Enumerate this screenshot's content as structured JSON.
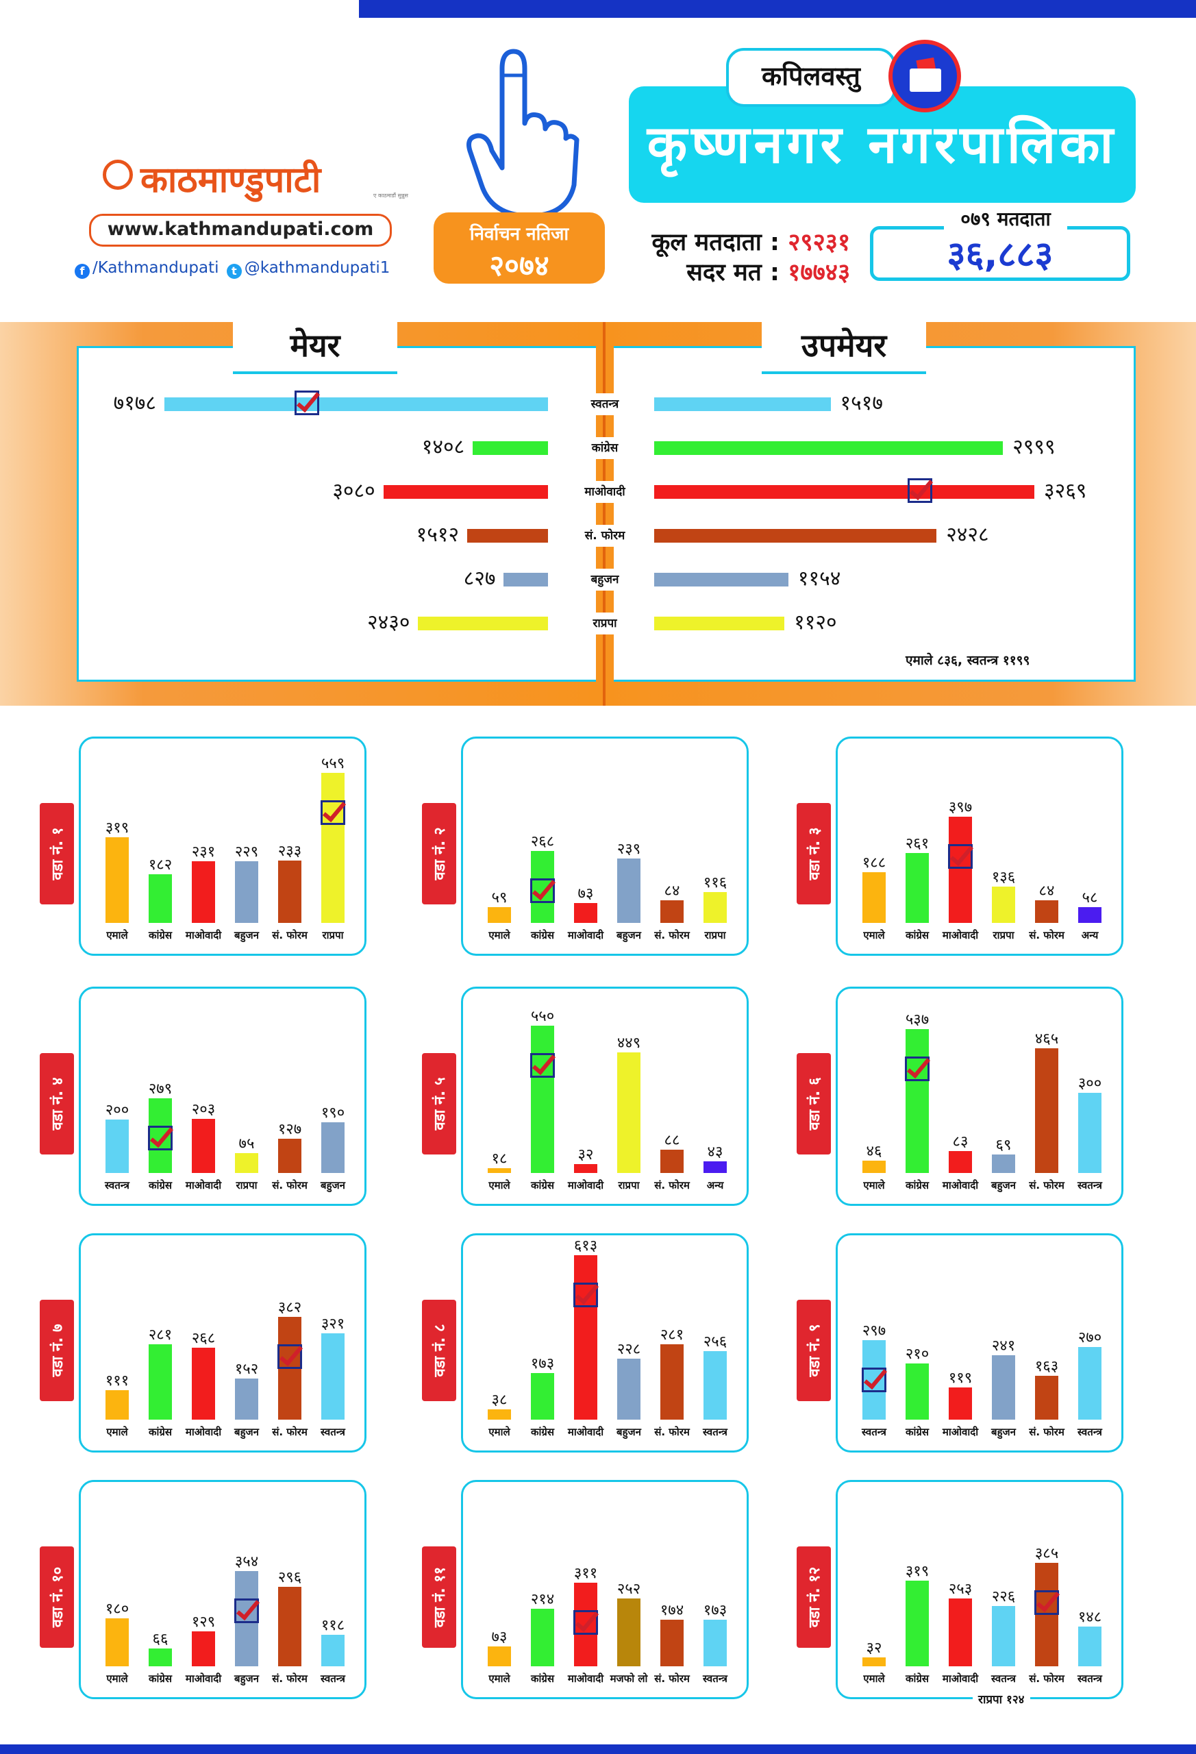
{
  "header": {
    "logo": "काठमाण्डुपाटी",
    "logo_tagline": "ए काठमाडौं सुन्नुस",
    "website": "www.kathmandupati.com",
    "facebook": "/Kathmandupati",
    "twitter": "@kathmandupati1",
    "badge_line1": "निर्वाचन नतिजा",
    "badge_line2": "२०७४",
    "district": "कपिलवस्तु",
    "municipality": "कृष्णनगर नगरपालिका",
    "total_voters_label": "कूल मतदाता :",
    "total_voters": "२९२३१",
    "valid_votes_label": "सदर मत :",
    "valid_votes": "१७७४३",
    "voters_079_label": "०७९ मतदाता",
    "voters_079": "३६,८८३"
  },
  "colors": {
    "cyan": "#16c6e8",
    "orange": "#f7931e",
    "red": "#e0262e",
    "blue": "#1b3bd1"
  },
  "chart_data": [
    {
      "type": "bar",
      "title_left": "मेयर",
      "title_right": "उपमेयर",
      "categories": [
        "स्वतन्त्र",
        "कांग्रेस",
        "माओवादी",
        "सं. फोरम",
        "बहुजन",
        "राप्रपा"
      ],
      "bar_colors": [
        "#5fd3f3",
        "#33ee33",
        "#f21d1d",
        "#c14414",
        "#82a2c8",
        "#eef22a"
      ],
      "series": [
        {
          "name": "मेयर",
          "values": [
            7178,
            1408,
            3080,
            1512,
            827,
            2430
          ],
          "labels": [
            "७१७८",
            "१४०८",
            "३०८०",
            "१५१२",
            "८२७",
            "२४३०"
          ],
          "winner_index": 0
        },
        {
          "name": "उपमेयर",
          "values": [
            1517,
            2999,
            3269,
            2428,
            1154,
            1120
          ],
          "labels": [
            "१५१७",
            "२९९९",
            "३२६९",
            "२४२८",
            "११५४",
            "११२०"
          ],
          "winner_index": 2
        }
      ],
      "footnote": "एमाले ८३६, स्वतन्त्र ११९९"
    },
    {
      "type": "bar",
      "ward": "वडा नं. १",
      "categories": [
        "एमाले",
        "कांग्रेस",
        "माओवादी",
        "बहुजन",
        "सं. फोरम",
        "राप्रपा"
      ],
      "values": [
        319,
        182,
        231,
        229,
        233,
        559
      ],
      "labels": [
        "३१९",
        "१८२",
        "२३१",
        "२२९",
        "२३३",
        "५५९"
      ],
      "colors": [
        "#fcb40f",
        "#33ee33",
        "#f21d1d",
        "#82a2c8",
        "#c14414",
        "#eef22a"
      ],
      "winner_index": 5
    },
    {
      "type": "bar",
      "ward": "वडा नं. २",
      "categories": [
        "एमाले",
        "कांग्रेस",
        "माओवादी",
        "बहुजन",
        "सं. फोरम",
        "राप्रपा"
      ],
      "values": [
        59,
        268,
        73,
        239,
        84,
        116
      ],
      "labels": [
        "५९",
        "२६८",
        "७३",
        "२३९",
        "८४",
        "११६"
      ],
      "colors": [
        "#fcb40f",
        "#33ee33",
        "#f21d1d",
        "#82a2c8",
        "#c14414",
        "#eef22a"
      ],
      "winner_index": 1
    },
    {
      "type": "bar",
      "ward": "वडा नं. ३",
      "categories": [
        "एमाले",
        "कांग्रेस",
        "माओवादी",
        "राप्रपा",
        "सं. फोरम",
        "अन्य"
      ],
      "values": [
        188,
        261,
        397,
        136,
        84,
        58
      ],
      "labels": [
        "१८८",
        "२६१",
        "३९७",
        "१३६",
        "८४",
        "५८"
      ],
      "colors": [
        "#fcb40f",
        "#33ee33",
        "#f21d1d",
        "#eef22a",
        "#c14414",
        "#4b1cf0"
      ],
      "winner_index": 2
    },
    {
      "type": "bar",
      "ward": "वडा नं. ४",
      "categories": [
        "स्वतन्त्र",
        "कांग्रेस",
        "माओवादी",
        "राप्रपा",
        "सं. फोरम",
        "बहुजन"
      ],
      "values": [
        200,
        279,
        203,
        75,
        127,
        190
      ],
      "labels": [
        "२००",
        "२७९",
        "२०३",
        "७५",
        "१२७",
        "१९०"
      ],
      "colors": [
        "#5fd3f3",
        "#33ee33",
        "#f21d1d",
        "#eef22a",
        "#c14414",
        "#82a2c8"
      ],
      "winner_index": 1
    },
    {
      "type": "bar",
      "ward": "वडा नं. ५",
      "categories": [
        "एमाले",
        "कांग्रेस",
        "माओवादी",
        "राप्रपा",
        "सं. फोरम",
        "अन्य"
      ],
      "values": [
        18,
        550,
        32,
        449,
        88,
        43
      ],
      "labels": [
        "१८",
        "५५०",
        "३२",
        "४४९",
        "८८",
        "४३"
      ],
      "colors": [
        "#fcb40f",
        "#33ee33",
        "#f21d1d",
        "#eef22a",
        "#c14414",
        "#4b1cf0"
      ],
      "winner_index": 1
    },
    {
      "type": "bar",
      "ward": "वडा नं. ६",
      "categories": [
        "एमाले",
        "कांग्रेस",
        "माओवादी",
        "बहुजन",
        "सं. फोरम",
        "स्वतन्त्र"
      ],
      "values": [
        46,
        537,
        83,
        69,
        465,
        300
      ],
      "labels": [
        "४६",
        "५३७",
        "८३",
        "६९",
        "४६५",
        "३००"
      ],
      "colors": [
        "#fcb40f",
        "#33ee33",
        "#f21d1d",
        "#82a2c8",
        "#c14414",
        "#5fd3f3"
      ],
      "winner_index": 1
    },
    {
      "type": "bar",
      "ward": "वडा नं. ७",
      "categories": [
        "एमाले",
        "कांग्रेस",
        "माओवादी",
        "बहुजन",
        "सं. फोरम",
        "स्वतन्त्र"
      ],
      "values": [
        111,
        281,
        268,
        152,
        382,
        321
      ],
      "labels": [
        "१११",
        "२८१",
        "२६८",
        "१५२",
        "३८२",
        "३२१"
      ],
      "colors": [
        "#fcb40f",
        "#33ee33",
        "#f21d1d",
        "#82a2c8",
        "#c14414",
        "#5fd3f3"
      ],
      "winner_index": 4
    },
    {
      "type": "bar",
      "ward": "वडा नं. ८",
      "categories": [
        "एमाले",
        "कांग्रेस",
        "माओवादी",
        "बहुजन",
        "सं. फोरम",
        "स्वतन्त्र"
      ],
      "values": [
        38,
        173,
        613,
        228,
        281,
        256
      ],
      "labels": [
        "३८",
        "१७३",
        "६१३",
        "२२८",
        "२८१",
        "२५६"
      ],
      "colors": [
        "#fcb40f",
        "#33ee33",
        "#f21d1d",
        "#82a2c8",
        "#c14414",
        "#5fd3f3"
      ],
      "winner_index": 2
    },
    {
      "type": "bar",
      "ward": "वडा नं. ९",
      "categories": [
        "स्वतन्त्र",
        "कांग्रेस",
        "माओवादी",
        "बहुजन",
        "सं. फोरम",
        "स्वतन्त्र"
      ],
      "values": [
        297,
        210,
        119,
        241,
        163,
        270
      ],
      "labels": [
        "२९७",
        "२१०",
        "११९",
        "२४१",
        "१६३",
        "२७०"
      ],
      "colors": [
        "#5fd3f3",
        "#33ee33",
        "#f21d1d",
        "#82a2c8",
        "#c14414",
        "#5fd3f3"
      ],
      "winner_index": 0
    },
    {
      "type": "bar",
      "ward": "वडा नं. १०",
      "categories": [
        "एमाले",
        "कांग्रेस",
        "माओवादी",
        "बहुजन",
        "सं. फोरम",
        "स्वतन्त्र"
      ],
      "values": [
        180,
        66,
        129,
        354,
        296,
        118
      ],
      "labels": [
        "१८०",
        "६६",
        "१२९",
        "३५४",
        "२९६",
        "११८"
      ],
      "colors": [
        "#fcb40f",
        "#33ee33",
        "#f21d1d",
        "#82a2c8",
        "#c14414",
        "#5fd3f3"
      ],
      "winner_index": 3
    },
    {
      "type": "bar",
      "ward": "वडा नं. ११",
      "categories": [
        "एमाले",
        "कांग्रेस",
        "माओवादी",
        "मजफो लो",
        "सं. फोरम",
        "स्वतन्त्र"
      ],
      "values": [
        73,
        214,
        311,
        252,
        174,
        173
      ],
      "labels": [
        "७३",
        "२१४",
        "३११",
        "२५२",
        "१७४",
        "१७३"
      ],
      "colors": [
        "#fcb40f",
        "#33ee33",
        "#f21d1d",
        "#b8860b",
        "#c14414",
        "#5fd3f3"
      ],
      "winner_index": 2
    },
    {
      "type": "bar",
      "ward": "वडा नं. १२",
      "categories": [
        "एमाले",
        "कांग्रेस",
        "माओवादी",
        "स्वतन्त्र",
        "सं. फोरम",
        "स्वतन्त्र"
      ],
      "values": [
        32,
        319,
        253,
        226,
        385,
        148
      ],
      "labels": [
        "३२",
        "३१९",
        "२५३",
        "२२६",
        "३८५",
        "१४८"
      ],
      "colors": [
        "#fcb40f",
        "#33ee33",
        "#f21d1d",
        "#5fd3f3",
        "#c14414",
        "#5fd3f3"
      ],
      "winner_index": 4,
      "footnote": "राप्रपा १२४"
    }
  ]
}
